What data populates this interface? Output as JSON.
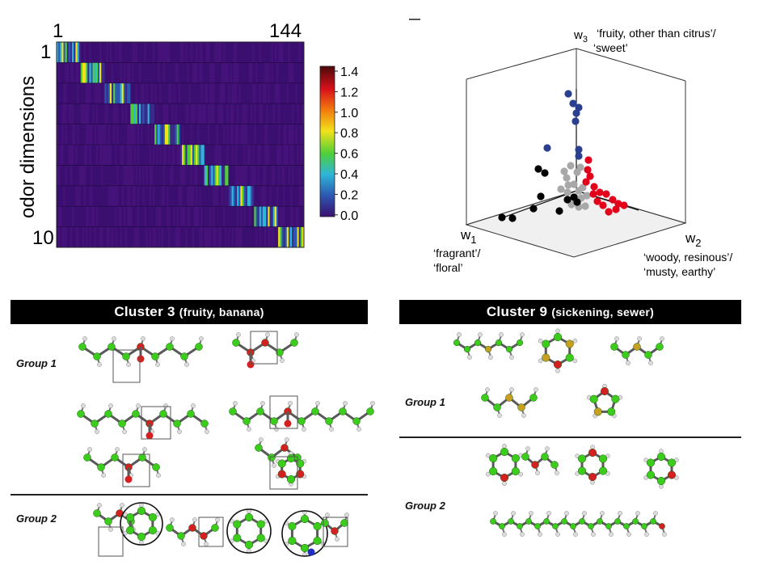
{
  "heatmap": {
    "ylabel": "odor dimensions",
    "col_first": "1",
    "col_last": "144",
    "row_first": "1",
    "row_last": "10",
    "colorbar_ticks": [
      "1.4",
      "1.2",
      "1.0",
      "0.8",
      "0.6",
      "0.4",
      "0.2",
      "0.0"
    ]
  },
  "plot3d": {
    "w1_label": "w",
    "w1_sub": "1",
    "w1_desc_1": "‘fragrant’/",
    "w1_desc_2": "‘floral’",
    "w2_label": "w",
    "w2_sub": "2",
    "w2_desc_1": "‘woody, resinous’/",
    "w2_desc_2": "‘musty, earthy’",
    "w3_label": "w",
    "w3_sub": "3",
    "w3_desc_1": "‘fruity, other than citrus’/",
    "w3_desc_2": "‘sweet’",
    "colors": {
      "blue": "#2b3f8f",
      "red": "#e3001b",
      "black": "#000000",
      "grey": "#a8a8a8"
    }
  },
  "cluster3": {
    "title_main": "Cluster 3",
    "title_detail": "(fruity, banana)",
    "group1": "Group 1",
    "group2": "Group 2"
  },
  "cluster9": {
    "title_main": "Cluster 9",
    "title_detail": "(sickening, sewer)",
    "group1": "Group 1",
    "group2": "Group 2"
  },
  "atom_colors": {
    "carbon": "#3ccc1c",
    "oxygen": "#d42020",
    "hydrogen": "#dcdcdc",
    "sulfur": "#c8a020",
    "nitrogen": "#2030c0"
  }
}
